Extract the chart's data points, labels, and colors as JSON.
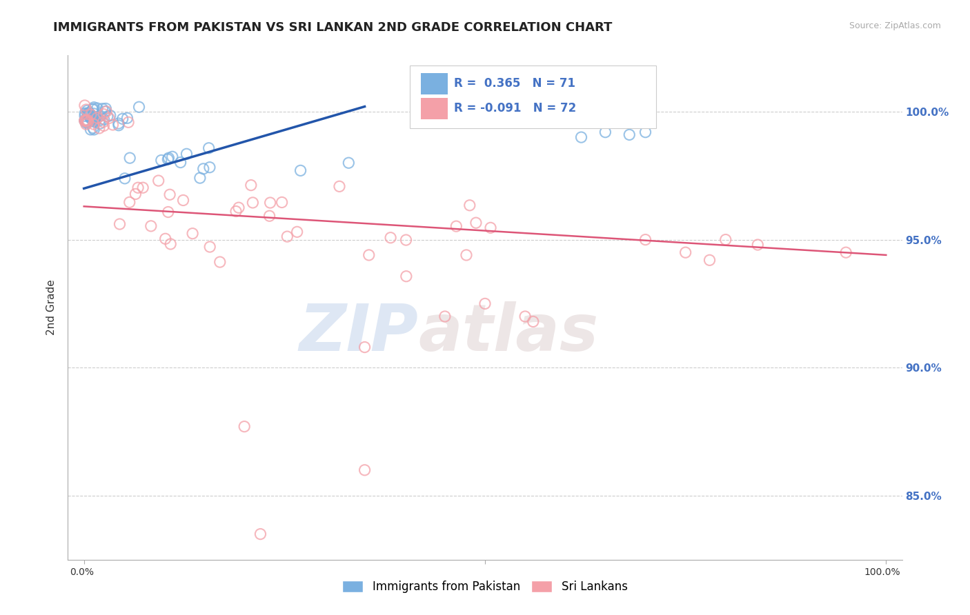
{
  "title": "IMMIGRANTS FROM PAKISTAN VS SRI LANKAN 2ND GRADE CORRELATION CHART",
  "source_text": "Source: ZipAtlas.com",
  "ylabel": "2nd Grade",
  "xlim": [
    -0.02,
    1.02
  ],
  "ylim": [
    0.825,
    1.022
  ],
  "yticks": [
    0.85,
    0.9,
    0.95,
    1.0
  ],
  "ytick_labels": [
    "85.0%",
    "90.0%",
    "95.0%",
    "100.0%"
  ],
  "blue_R": 0.365,
  "blue_N": 71,
  "pink_R": -0.091,
  "pink_N": 72,
  "blue_color": "#7ab0e0",
  "pink_color": "#f4a0a8",
  "blue_line_color": "#2255aa",
  "pink_line_color": "#dd5577",
  "legend_label_blue": "Immigrants from Pakistan",
  "legend_label_pink": "Sri Lankans",
  "watermark_zip": "ZIP",
  "watermark_atlas": "atlas",
  "title_fontsize": 13,
  "axis_label_fontsize": 10,
  "tick_fontsize": 10,
  "legend_fontsize": 11,
  "r_text_color": "#4472c4",
  "grid_color": "#cccccc",
  "right_tick_color": "#4472c4",
  "blue_scatter_x": [
    0.002,
    0.003,
    0.004,
    0.005,
    0.006,
    0.006,
    0.007,
    0.007,
    0.008,
    0.008,
    0.009,
    0.009,
    0.01,
    0.01,
    0.011,
    0.011,
    0.012,
    0.012,
    0.013,
    0.014,
    0.015,
    0.015,
    0.016,
    0.017,
    0.018,
    0.019,
    0.02,
    0.021,
    0.022,
    0.023,
    0.025,
    0.027,
    0.03,
    0.032,
    0.035,
    0.038,
    0.04,
    0.045,
    0.05,
    0.055,
    0.06,
    0.07,
    0.08,
    0.09,
    0.1,
    0.11,
    0.13,
    0.15,
    0.17,
    0.19,
    0.21,
    0.23,
    0.25,
    0.28,
    0.3,
    0.33,
    0.35,
    0.38,
    0.4,
    0.42,
    0.45,
    0.48,
    0.5,
    0.55,
    0.6,
    0.63,
    0.65,
    0.67,
    0.69,
    0.7,
    0.72
  ],
  "blue_scatter_y": [
    0.997,
    0.999,
    0.998,
    0.997,
    0.999,
    0.998,
    0.997,
    0.996,
    0.998,
    0.997,
    0.996,
    0.999,
    0.997,
    0.998,
    0.996,
    0.995,
    0.998,
    0.997,
    0.996,
    0.997,
    0.998,
    0.995,
    0.997,
    0.996,
    0.995,
    0.994,
    0.997,
    0.996,
    0.994,
    0.993,
    0.996,
    0.994,
    0.993,
    0.995,
    0.994,
    0.993,
    0.994,
    0.993,
    0.992,
    0.994,
    0.993,
    0.992,
    0.994,
    0.993,
    0.994,
    0.995,
    0.994,
    0.995,
    0.994,
    0.996,
    0.995,
    0.994,
    0.996,
    0.997,
    0.995,
    0.996,
    0.997,
    0.996,
    0.997,
    0.998,
    0.997,
    0.998,
    0.999,
    0.998,
    0.999,
    0.998,
    0.999,
    0.999,
    0.998,
    0.999,
    0.998
  ],
  "pink_scatter_x": [
    0.002,
    0.003,
    0.004,
    0.005,
    0.006,
    0.007,
    0.008,
    0.009,
    0.01,
    0.011,
    0.012,
    0.013,
    0.015,
    0.016,
    0.018,
    0.02,
    0.022,
    0.025,
    0.028,
    0.032,
    0.035,
    0.04,
    0.045,
    0.05,
    0.06,
    0.07,
    0.08,
    0.095,
    0.11,
    0.13,
    0.15,
    0.17,
    0.19,
    0.21,
    0.23,
    0.25,
    0.27,
    0.29,
    0.32,
    0.35,
    0.37,
    0.39,
    0.42,
    0.44,
    0.46,
    0.49,
    0.52,
    0.55,
    0.58,
    0.61,
    0.64,
    0.66,
    0.68,
    0.7,
    0.72,
    0.75,
    0.77,
    0.8,
    0.82,
    0.85,
    0.87,
    0.9,
    0.92,
    0.35,
    0.38,
    0.45,
    0.2,
    0.24,
    0.55,
    0.6,
    0.65,
    0.68
  ],
  "pink_scatter_y": [
    0.998,
    0.997,
    0.999,
    0.998,
    0.997,
    0.998,
    0.997,
    0.996,
    0.997,
    0.998,
    0.996,
    0.997,
    0.996,
    0.995,
    0.997,
    0.995,
    0.996,
    0.996,
    0.994,
    0.993,
    0.994,
    0.993,
    0.961,
    0.959,
    0.958,
    0.963,
    0.955,
    0.96,
    0.956,
    0.957,
    0.958,
    0.953,
    0.952,
    0.954,
    0.95,
    0.953,
    0.955,
    0.949,
    0.953,
    0.95,
    0.955,
    0.952,
    0.957,
    0.951,
    0.954,
    0.956,
    0.95,
    0.954,
    0.952,
    0.958,
    0.955,
    0.957,
    0.953,
    0.951,
    0.956,
    0.955,
    0.958,
    0.956,
    0.955,
    0.958,
    0.953,
    0.957,
    0.955,
    0.92,
    0.915,
    0.93,
    0.875,
    0.88,
    0.91,
    0.909,
    0.912,
    0.914
  ]
}
